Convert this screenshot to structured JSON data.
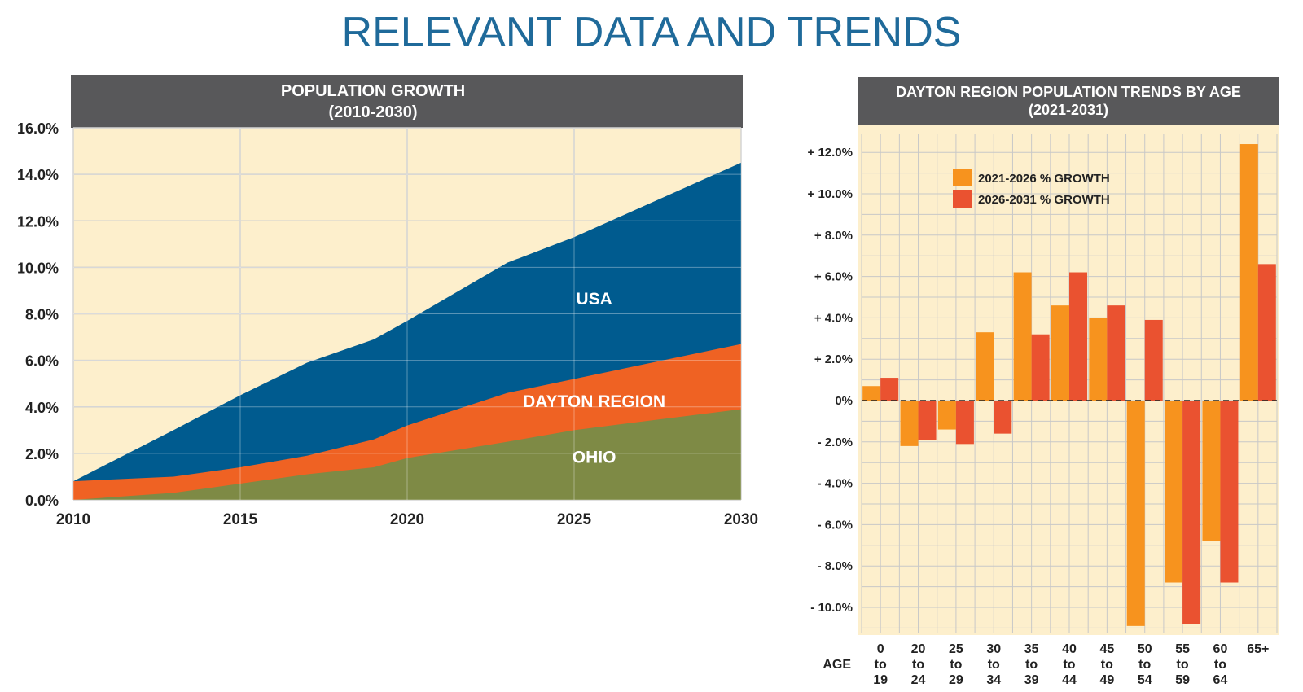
{
  "page": {
    "title": "RELEVANT DATA AND TRENDS"
  },
  "colors": {
    "title": "#1f6a9a",
    "header_bg": "#58585a",
    "panel_bg": "#fdefcc",
    "grid": "#c8c8c8",
    "usa": "#005b8f",
    "dayton": "#ef6223",
    "ohio": "#7e8a45",
    "bar_2021_2026": "#f7931e",
    "bar_2026_2031": "#ea5230"
  },
  "chart_data": [
    {
      "type": "area",
      "title": "POPULATION GROWTH",
      "subtitle": "(2010-2030)",
      "x": [
        2010,
        2013,
        2015,
        2017,
        2019,
        2020,
        2023,
        2025,
        2030
      ],
      "x_ticks": [
        2010,
        2015,
        2020,
        2025,
        2030
      ],
      "y_ticks": [
        0,
        2,
        4,
        6,
        8,
        10,
        12,
        14,
        16
      ],
      "y_tick_labels": [
        "0.0%",
        "2.0%",
        "4.0%",
        "6.0%",
        "8.0%",
        "10.0%",
        "12.0%",
        "14.0%",
        "16.0%"
      ],
      "xlim": [
        2010,
        2030
      ],
      "ylim": [
        0,
        16
      ],
      "grid": true,
      "series": [
        {
          "name": "OHIO",
          "values": [
            0.0,
            0.3,
            0.7,
            1.1,
            1.4,
            1.8,
            2.5,
            3.0,
            3.9
          ]
        },
        {
          "name": "DAYTON REGION",
          "values": [
            0.8,
            1.0,
            1.4,
            1.9,
            2.6,
            3.2,
            4.6,
            5.2,
            6.7
          ]
        },
        {
          "name": "USA",
          "values": [
            0.8,
            3.0,
            4.5,
            5.9,
            6.9,
            7.7,
            10.2,
            11.3,
            14.5
          ]
        }
      ],
      "annotations": [
        {
          "text": "USA",
          "series": "USA",
          "x": 2025.6,
          "y": 8.4
        },
        {
          "text": "DAYTON REGION",
          "series": "DAYTON REGION",
          "x": 2025.6,
          "y": 4.0
        },
        {
          "text": "OHIO",
          "series": "OHIO",
          "x": 2025.6,
          "y": 1.6
        }
      ]
    },
    {
      "type": "bar",
      "title": "DAYTON REGION POPULATION TRENDS BY AGE",
      "subtitle": "(2021-2031)",
      "x_axis_label": "AGE",
      "categories": [
        [
          "0",
          "to",
          "19"
        ],
        [
          "20",
          "to",
          "24"
        ],
        [
          "25",
          "to",
          "29"
        ],
        [
          "30",
          "to",
          "34"
        ],
        [
          "35",
          "to",
          "39"
        ],
        [
          "40",
          "to",
          "44"
        ],
        [
          "45",
          "to",
          "49"
        ],
        [
          "50",
          "to",
          "54"
        ],
        [
          "55",
          "to",
          "59"
        ],
        [
          "60",
          "to",
          "64"
        ],
        [
          "65+"
        ]
      ],
      "series": [
        {
          "name": "2021-2026 % GROWTH",
          "values": [
            0.7,
            -2.2,
            -1.4,
            3.3,
            6.2,
            4.6,
            4.0,
            -10.9,
            -8.8,
            -6.8,
            12.4
          ]
        },
        {
          "name": "2026-2031 % GROWTH",
          "values": [
            1.1,
            -1.9,
            -2.1,
            -1.6,
            3.2,
            6.2,
            4.6,
            3.9,
            -10.8,
            -8.8,
            6.6
          ]
        }
      ],
      "y_ticks": [
        -10,
        -8,
        -6,
        -4,
        -2,
        0,
        2,
        4,
        6,
        8,
        10,
        12
      ],
      "y_tick_labels": [
        "- 10.0%",
        "- 8.0%",
        "- 6.0%",
        "- 4.0%",
        "- 2.0%",
        "0%",
        "+ 2.0%",
        "+ 4.0%",
        "+ 6.0%",
        "+ 8.0%",
        "+ 10.0%",
        "+ 12.0%"
      ],
      "ylim": [
        -11,
        12.0
      ],
      "grid": true,
      "legend": {
        "placement": "top-left"
      }
    }
  ]
}
